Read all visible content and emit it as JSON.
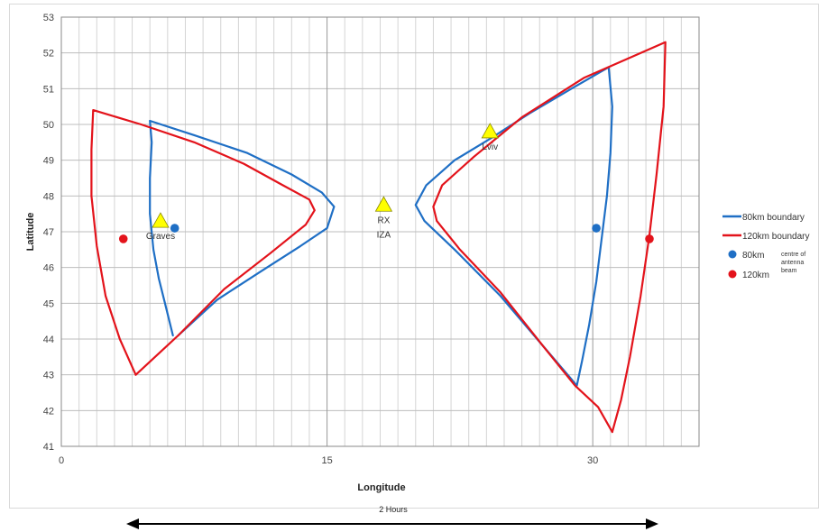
{
  "chart_data": {
    "type": "line",
    "xlabel": "Longitude",
    "ylabel": "Latitude",
    "xlim": [
      0,
      36
    ],
    "ylim": [
      41,
      53
    ],
    "x_ticks": [
      0,
      15,
      30
    ],
    "y_ticks": [
      41,
      42,
      43,
      44,
      45,
      46,
      47,
      48,
      49,
      50,
      51,
      52,
      53
    ],
    "grid": true,
    "legend_position": "right",
    "colors": {
      "blue": "#1f6fc5",
      "red": "#e3131b",
      "marker_yellow": "#ffff00"
    },
    "series": [
      {
        "name": "80km boundary",
        "color": "#1f6fc5",
        "segments": [
          [
            [
              6.3,
              44.1
            ],
            [
              5.9,
              44.9
            ],
            [
              5.5,
              45.7
            ],
            [
              5.2,
              46.5
            ],
            [
              5.0,
              47.5
            ],
            [
              5.0,
              48.5
            ],
            [
              5.1,
              49.5
            ],
            [
              5.0,
              50.1
            ],
            [
              7.5,
              49.7
            ],
            [
              10.5,
              49.2
            ],
            [
              13.0,
              48.6
            ],
            [
              14.7,
              48.1
            ],
            [
              15.4,
              47.7
            ],
            [
              15.0,
              47.1
            ],
            [
              13.5,
              46.6
            ],
            [
              11.3,
              45.9
            ],
            [
              8.8,
              45.1
            ],
            [
              6.6,
              44.1
            ]
          ],
          [
            [
              29.1,
              42.7
            ],
            [
              27.2,
              43.8
            ],
            [
              24.8,
              45.2
            ],
            [
              22.2,
              46.5
            ],
            [
              20.5,
              47.3
            ],
            [
              20.0,
              47.75
            ],
            [
              20.6,
              48.3
            ],
            [
              22.2,
              49.0
            ],
            [
              24.2,
              49.6
            ],
            [
              26.4,
              50.3
            ],
            [
              28.8,
              51.0
            ],
            [
              30.9,
              51.6
            ],
            [
              31.1,
              50.5
            ],
            [
              31.0,
              49.2
            ],
            [
              30.8,
              48.0
            ],
            [
              30.5,
              46.8
            ],
            [
              30.2,
              45.6
            ],
            [
              29.8,
              44.4
            ],
            [
              29.4,
              43.4
            ],
            [
              29.1,
              42.7
            ]
          ]
        ]
      },
      {
        "name": "120km boundary",
        "color": "#e3131b",
        "segments": [
          [
            [
              4.2,
              43.0
            ],
            [
              3.3,
              44.0
            ],
            [
              2.5,
              45.2
            ],
            [
              2.0,
              46.6
            ],
            [
              1.7,
              48.0
            ],
            [
              1.7,
              49.3
            ],
            [
              1.8,
              50.4
            ],
            [
              4.5,
              50.0
            ],
            [
              7.5,
              49.5
            ],
            [
              10.3,
              48.9
            ],
            [
              12.5,
              48.3
            ],
            [
              14.0,
              47.9
            ],
            [
              14.3,
              47.6
            ],
            [
              13.8,
              47.2
            ],
            [
              11.8,
              46.4
            ],
            [
              9.2,
              45.4
            ],
            [
              6.6,
              44.1
            ],
            [
              4.2,
              43.0
            ]
          ],
          [
            [
              31.1,
              41.4
            ],
            [
              30.3,
              42.1
            ],
            [
              29.0,
              42.7
            ],
            [
              27.2,
              43.8
            ],
            [
              24.8,
              45.3
            ],
            [
              22.5,
              46.5
            ],
            [
              21.2,
              47.3
            ],
            [
              21.0,
              47.7
            ],
            [
              21.5,
              48.3
            ],
            [
              23.3,
              49.1
            ],
            [
              26.0,
              50.2
            ],
            [
              29.5,
              51.3
            ],
            [
              34.1,
              52.3
            ],
            [
              34.0,
              50.5
            ],
            [
              33.6,
              48.6
            ],
            [
              33.2,
              46.9
            ],
            [
              32.7,
              45.2
            ],
            [
              32.1,
              43.5
            ],
            [
              31.6,
              42.3
            ],
            [
              31.1,
              41.4
            ]
          ]
        ]
      }
    ],
    "markers": {
      "centres": [
        {
          "legend": "80km",
          "color": "#1f6fc5",
          "points": [
            [
              6.4,
              47.1
            ],
            [
              30.2,
              47.1
            ]
          ]
        },
        {
          "legend": "120km",
          "color": "#e3131b",
          "points": [
            [
              3.5,
              46.8
            ],
            [
              33.2,
              46.8
            ]
          ]
        }
      ],
      "stations": [
        {
          "label": "Graves",
          "lon": 5.6,
          "lat": 47.3
        },
        {
          "label": "RX",
          "label2": "IZA",
          "lon": 18.2,
          "lat": 47.75
        },
        {
          "label": "Lviv",
          "lon": 24.2,
          "lat": 49.8
        }
      ]
    },
    "legend": {
      "blue_line": "80km boundary",
      "red_line": "120km boundary",
      "blue_dot": "80km",
      "red_dot": "120km",
      "dot_note_1": "centre of",
      "dot_note_2": "antenna",
      "dot_note_3": "beam"
    },
    "span_annotation": "2 Hours"
  }
}
